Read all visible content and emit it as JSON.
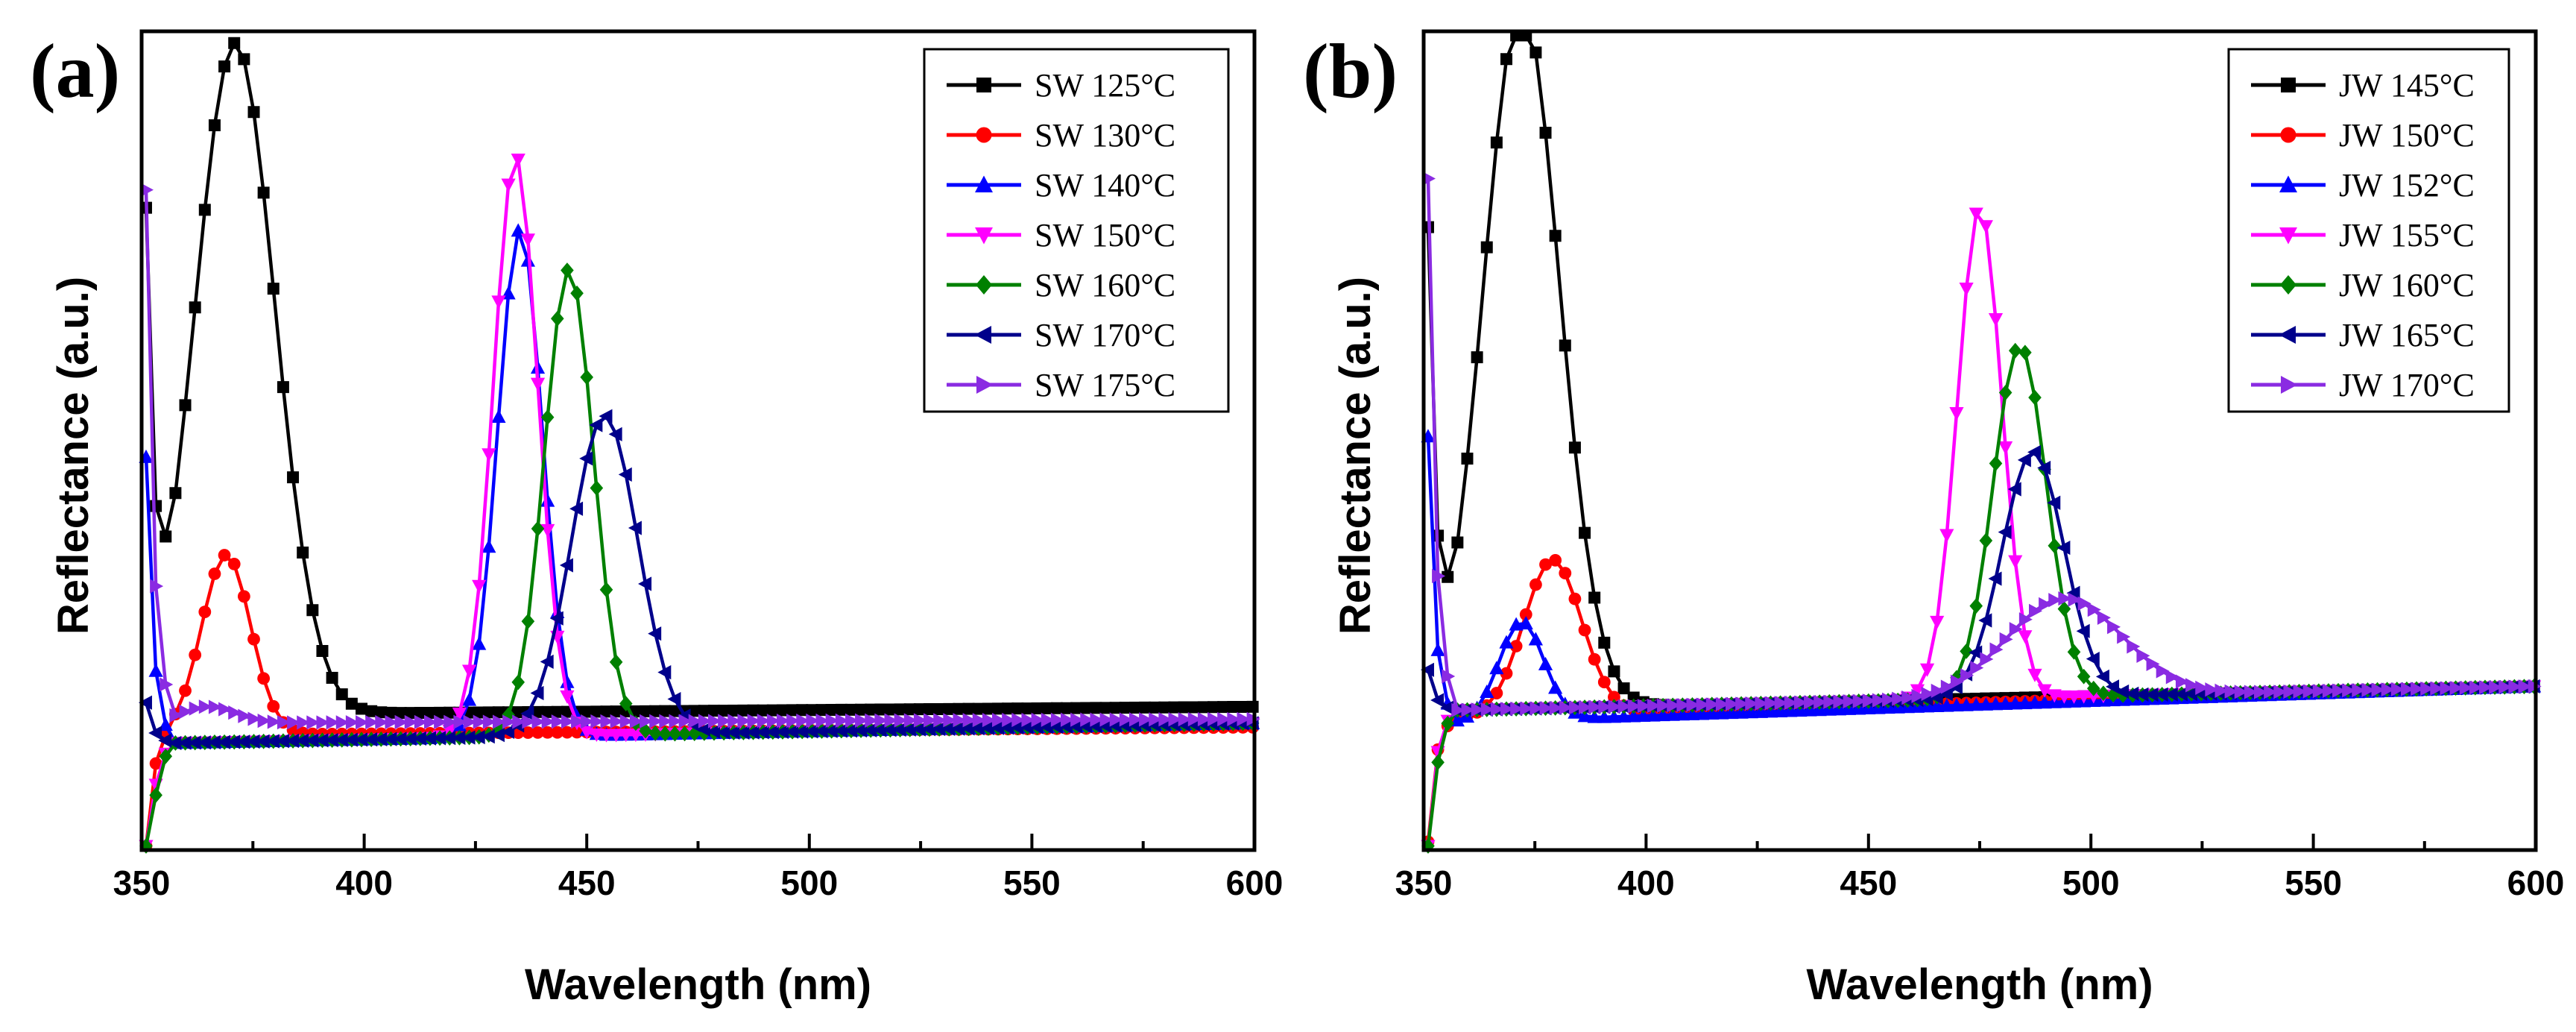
{
  "chart_data": [
    {
      "type": "line",
      "panel_label": "(a)",
      "xlabel": "Wavelength (nm)",
      "ylabel": "Reflectance (a.u.)",
      "xlim": [
        350,
        600
      ],
      "ylim": [
        0,
        1
      ],
      "x_ticks": [
        "350",
        "400",
        "450",
        "500",
        "550",
        "600"
      ],
      "legend_position": "top-right",
      "series": [
        {
          "name": "SW 125°C",
          "color": "#000000",
          "marker": "square",
          "center": 371,
          "width": 9,
          "amp": 0.82,
          "base_start": 0.165,
          "base_end": 0.175
        },
        {
          "name": "SW 130°C",
          "color": "#ff0000",
          "marker": "circle",
          "center": 369,
          "width": 5.5,
          "amp": 0.22,
          "base_start": 0.14,
          "base_end": 0.15
        },
        {
          "name": "SW 140°C",
          "color": "#0000ff",
          "marker": "triangle-up",
          "center": 435,
          "width": 5,
          "amp": 0.62,
          "base_start": 0.13,
          "base_end": 0.155
        },
        {
          "name": "SW 150°C",
          "color": "#ff00ff",
          "marker": "triangle-down",
          "center": 434,
          "width": 5,
          "amp": 0.71,
          "base_start": 0.13,
          "base_end": 0.155
        },
        {
          "name": "SW 160°C",
          "color": "#008000",
          "marker": "diamond",
          "center": 446,
          "width": 5.5,
          "amp": 0.57,
          "base_start": 0.13,
          "base_end": 0.155
        },
        {
          "name": "SW 170°C",
          "color": "#00008b",
          "marker": "triangle-left",
          "center": 454,
          "width": 7.5,
          "amp": 0.39,
          "base_start": 0.13,
          "base_end": 0.155
        },
        {
          "name": "SW 175°C",
          "color": "#8a2be2",
          "marker": "triangle-right",
          "center": 365,
          "width": 6,
          "amp": 0.02,
          "base_start": 0.155,
          "base_end": 0.16
        }
      ]
    },
    {
      "type": "line",
      "panel_label": "(b)",
      "xlabel": "Wavelength (nm)",
      "ylabel": "Reflectance (a.u.)",
      "xlim": [
        350,
        600
      ],
      "ylim": [
        0,
        1
      ],
      "x_ticks": [
        "350",
        "400",
        "450",
        "500",
        "550",
        "600"
      ],
      "legend_position": "top-right",
      "series": [
        {
          "name": "JW 145°C",
          "color": "#000000",
          "marker": "square",
          "center": 372,
          "width": 8.5,
          "amp": 0.86,
          "base_start": 0.17,
          "base_end": 0.2
        },
        {
          "name": "JW 150°C",
          "color": "#ff0000",
          "marker": "circle",
          "center": 379,
          "width": 6.5,
          "amp": 0.19,
          "base_start": 0.16,
          "base_end": 0.2
        },
        {
          "name": "JW 152°C",
          "color": "#0000ff",
          "marker": "triangle-up",
          "center": 372,
          "width": 5,
          "amp": 0.12,
          "base_start": 0.155,
          "base_end": 0.2
        },
        {
          "name": "JW 155°C",
          "color": "#ff00ff",
          "marker": "triangle-down",
          "center": 475,
          "width": 5,
          "amp": 0.6,
          "base_start": 0.17,
          "base_end": 0.2
        },
        {
          "name": "JW 160°C",
          "color": "#008000",
          "marker": "diamond",
          "center": 484,
          "width": 6,
          "amp": 0.43,
          "base_start": 0.17,
          "base_end": 0.2
        },
        {
          "name": "JW 165°C",
          "color": "#00008b",
          "marker": "triangle-left",
          "center": 487,
          "width": 7,
          "amp": 0.3,
          "base_start": 0.17,
          "base_end": 0.2
        },
        {
          "name": "JW 170°C",
          "color": "#8a2be2",
          "marker": "triangle-right",
          "center": 494,
          "width": 13,
          "amp": 0.12,
          "base_start": 0.17,
          "base_end": 0.2
        }
      ]
    }
  ]
}
